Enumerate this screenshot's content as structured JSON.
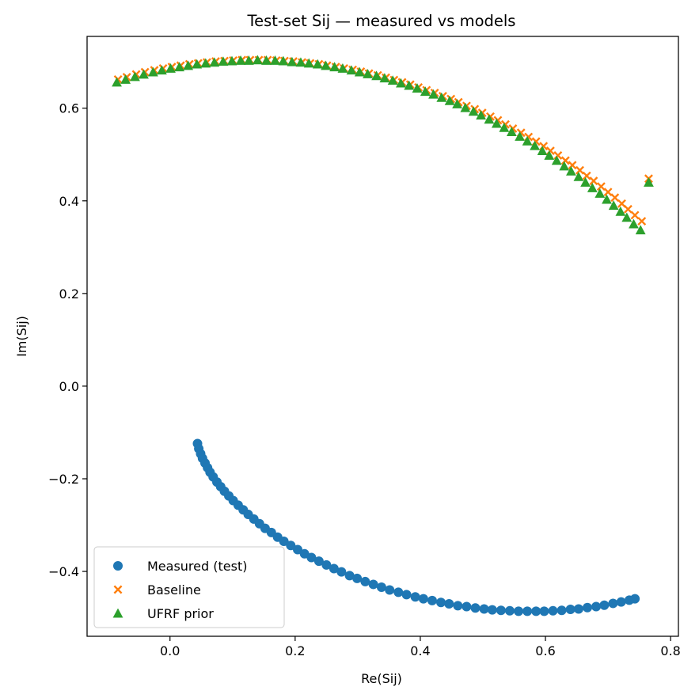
{
  "chart_data": {
    "type": "scatter",
    "title": "Test-set Sij — measured vs models",
    "xlabel": "Re(Sij)",
    "ylabel": "Im(Sij)",
    "xlim": [
      -0.1325,
      0.8125
    ],
    "ylim": [
      -0.54,
      0.755
    ],
    "xticks": [
      0.0,
      0.2,
      0.4,
      0.6,
      0.8
    ],
    "xtick_labels": [
      "0.0",
      "0.2",
      "0.4",
      "0.6",
      "0.8"
    ],
    "yticks": [
      -0.4,
      -0.2,
      0.0,
      0.2,
      0.4,
      0.6
    ],
    "ytick_labels": [
      "−0.4",
      "−0.2",
      "0.0",
      "0.2",
      "0.4",
      "0.6"
    ],
    "grid": false,
    "legend_position": "lower-left",
    "series": [
      {
        "name": "Measured (test)",
        "marker": "circle",
        "color": "#1f77b4",
        "points": [
          [
            0.044,
            -0.124
          ],
          [
            0.046,
            -0.135
          ],
          [
            0.049,
            -0.146
          ],
          [
            0.052,
            -0.156
          ],
          [
            0.056,
            -0.166
          ],
          [
            0.06,
            -0.176
          ],
          [
            0.064,
            -0.186
          ],
          [
            0.069,
            -0.196
          ],
          [
            0.075,
            -0.207
          ],
          [
            0.081,
            -0.217
          ],
          [
            0.087,
            -0.227
          ],
          [
            0.094,
            -0.237
          ],
          [
            0.101,
            -0.247
          ],
          [
            0.109,
            -0.257
          ],
          [
            0.117,
            -0.267
          ],
          [
            0.125,
            -0.277
          ],
          [
            0.134,
            -0.287
          ],
          [
            0.143,
            -0.297
          ],
          [
            0.152,
            -0.307
          ],
          [
            0.162,
            -0.316
          ],
          [
            0.172,
            -0.326
          ],
          [
            0.182,
            -0.335
          ],
          [
            0.193,
            -0.344
          ],
          [
            0.204,
            -0.353
          ],
          [
            0.215,
            -0.362
          ],
          [
            0.226,
            -0.37
          ],
          [
            0.238,
            -0.378
          ],
          [
            0.25,
            -0.386
          ],
          [
            0.262,
            -0.394
          ],
          [
            0.274,
            -0.401
          ],
          [
            0.287,
            -0.409
          ],
          [
            0.299,
            -0.415
          ],
          [
            0.312,
            -0.422
          ],
          [
            0.325,
            -0.428
          ],
          [
            0.338,
            -0.434
          ],
          [
            0.351,
            -0.44
          ],
          [
            0.365,
            -0.445
          ],
          [
            0.378,
            -0.45
          ],
          [
            0.392,
            -0.455
          ],
          [
            0.405,
            -0.459
          ],
          [
            0.419,
            -0.463
          ],
          [
            0.433,
            -0.467
          ],
          [
            0.446,
            -0.47
          ],
          [
            0.46,
            -0.474
          ],
          [
            0.474,
            -0.476
          ],
          [
            0.488,
            -0.479
          ],
          [
            0.502,
            -0.481
          ],
          [
            0.515,
            -0.483
          ],
          [
            0.529,
            -0.484
          ],
          [
            0.543,
            -0.485
          ],
          [
            0.557,
            -0.486
          ],
          [
            0.571,
            -0.486
          ],
          [
            0.585,
            -0.486
          ],
          [
            0.598,
            -0.486
          ],
          [
            0.612,
            -0.485
          ],
          [
            0.626,
            -0.484
          ],
          [
            0.64,
            -0.482
          ],
          [
            0.653,
            -0.481
          ],
          [
            0.667,
            -0.478
          ],
          [
            0.681,
            -0.476
          ],
          [
            0.694,
            -0.473
          ],
          [
            0.708,
            -0.469
          ],
          [
            0.721,
            -0.466
          ],
          [
            0.734,
            -0.462
          ],
          [
            0.743,
            -0.459
          ]
        ]
      },
      {
        "name": "Baseline",
        "marker": "x",
        "color": "#ff7f0e",
        "points": [
          [
            -0.083,
            0.662
          ],
          [
            -0.069,
            0.667
          ],
          [
            -0.054,
            0.673
          ],
          [
            -0.04,
            0.678
          ],
          [
            -0.025,
            0.682
          ],
          [
            -0.011,
            0.686
          ],
          [
            0.003,
            0.689
          ],
          [
            0.017,
            0.692
          ],
          [
            0.031,
            0.695
          ],
          [
            0.045,
            0.697
          ],
          [
            0.059,
            0.699
          ],
          [
            0.073,
            0.701
          ],
          [
            0.087,
            0.702
          ],
          [
            0.101,
            0.703
          ],
          [
            0.115,
            0.704
          ],
          [
            0.128,
            0.704
          ],
          [
            0.142,
            0.704
          ],
          [
            0.156,
            0.704
          ],
          [
            0.17,
            0.703
          ],
          [
            0.183,
            0.702
          ],
          [
            0.197,
            0.701
          ],
          [
            0.211,
            0.699
          ],
          [
            0.224,
            0.697
          ],
          [
            0.238,
            0.695
          ],
          [
            0.251,
            0.692
          ],
          [
            0.265,
            0.689
          ],
          [
            0.278,
            0.686
          ],
          [
            0.292,
            0.683
          ],
          [
            0.305,
            0.679
          ],
          [
            0.318,
            0.675
          ],
          [
            0.332,
            0.671
          ],
          [
            0.345,
            0.666
          ],
          [
            0.358,
            0.661
          ],
          [
            0.371,
            0.656
          ],
          [
            0.384,
            0.651
          ],
          [
            0.397,
            0.645
          ],
          [
            0.41,
            0.639
          ],
          [
            0.423,
            0.633
          ],
          [
            0.436,
            0.626
          ],
          [
            0.449,
            0.62
          ],
          [
            0.461,
            0.613
          ],
          [
            0.474,
            0.605
          ],
          [
            0.487,
            0.598
          ],
          [
            0.499,
            0.59
          ],
          [
            0.512,
            0.582
          ],
          [
            0.524,
            0.574
          ],
          [
            0.536,
            0.565
          ],
          [
            0.548,
            0.556
          ],
          [
            0.561,
            0.547
          ],
          [
            0.573,
            0.538
          ],
          [
            0.585,
            0.528
          ],
          [
            0.597,
            0.518
          ],
          [
            0.608,
            0.508
          ],
          [
            0.62,
            0.498
          ],
          [
            0.632,
            0.487
          ],
          [
            0.643,
            0.477
          ],
          [
            0.655,
            0.466
          ],
          [
            0.666,
            0.454
          ],
          [
            0.677,
            0.443
          ],
          [
            0.689,
            0.431
          ],
          [
            0.7,
            0.419
          ],
          [
            0.711,
            0.407
          ],
          [
            0.722,
            0.394
          ],
          [
            0.732,
            0.382
          ],
          [
            0.743,
            0.369
          ],
          [
            0.754,
            0.356
          ],
          [
            0.765,
            0.448
          ]
        ]
      },
      {
        "name": "UFRF prior",
        "marker": "triangle",
        "color": "#2ca02c",
        "points": [
          [
            -0.085,
            0.656
          ],
          [
            -0.071,
            0.662
          ],
          [
            -0.056,
            0.668
          ],
          [
            -0.042,
            0.673
          ],
          [
            -0.027,
            0.678
          ],
          [
            -0.013,
            0.682
          ],
          [
            0.001,
            0.686
          ],
          [
            0.015,
            0.689
          ],
          [
            0.029,
            0.692
          ],
          [
            0.043,
            0.695
          ],
          [
            0.057,
            0.697
          ],
          [
            0.071,
            0.699
          ],
          [
            0.085,
            0.701
          ],
          [
            0.099,
            0.702
          ],
          [
            0.113,
            0.703
          ],
          [
            0.126,
            0.703
          ],
          [
            0.14,
            0.704
          ],
          [
            0.154,
            0.703
          ],
          [
            0.168,
            0.703
          ],
          [
            0.181,
            0.702
          ],
          [
            0.195,
            0.7
          ],
          [
            0.209,
            0.699
          ],
          [
            0.222,
            0.697
          ],
          [
            0.236,
            0.695
          ],
          [
            0.249,
            0.692
          ],
          [
            0.263,
            0.689
          ],
          [
            0.276,
            0.686
          ],
          [
            0.29,
            0.682
          ],
          [
            0.303,
            0.678
          ],
          [
            0.316,
            0.674
          ],
          [
            0.33,
            0.67
          ],
          [
            0.343,
            0.665
          ],
          [
            0.356,
            0.66
          ],
          [
            0.369,
            0.654
          ],
          [
            0.382,
            0.649
          ],
          [
            0.395,
            0.643
          ],
          [
            0.408,
            0.636
          ],
          [
            0.421,
            0.63
          ],
          [
            0.434,
            0.623
          ],
          [
            0.447,
            0.616
          ],
          [
            0.459,
            0.609
          ],
          [
            0.472,
            0.601
          ],
          [
            0.485,
            0.593
          ],
          [
            0.497,
            0.585
          ],
          [
            0.51,
            0.576
          ],
          [
            0.522,
            0.567
          ],
          [
            0.534,
            0.558
          ],
          [
            0.546,
            0.549
          ],
          [
            0.559,
            0.539
          ],
          [
            0.571,
            0.529
          ],
          [
            0.583,
            0.519
          ],
          [
            0.595,
            0.508
          ],
          [
            0.606,
            0.498
          ],
          [
            0.618,
            0.487
          ],
          [
            0.63,
            0.475
          ],
          [
            0.641,
            0.464
          ],
          [
            0.653,
            0.452
          ],
          [
            0.664,
            0.44
          ],
          [
            0.675,
            0.428
          ],
          [
            0.687,
            0.416
          ],
          [
            0.698,
            0.403
          ],
          [
            0.709,
            0.39
          ],
          [
            0.72,
            0.377
          ],
          [
            0.73,
            0.364
          ],
          [
            0.741,
            0.35
          ],
          [
            0.752,
            0.337
          ],
          [
            0.765,
            0.44
          ]
        ]
      }
    ]
  }
}
